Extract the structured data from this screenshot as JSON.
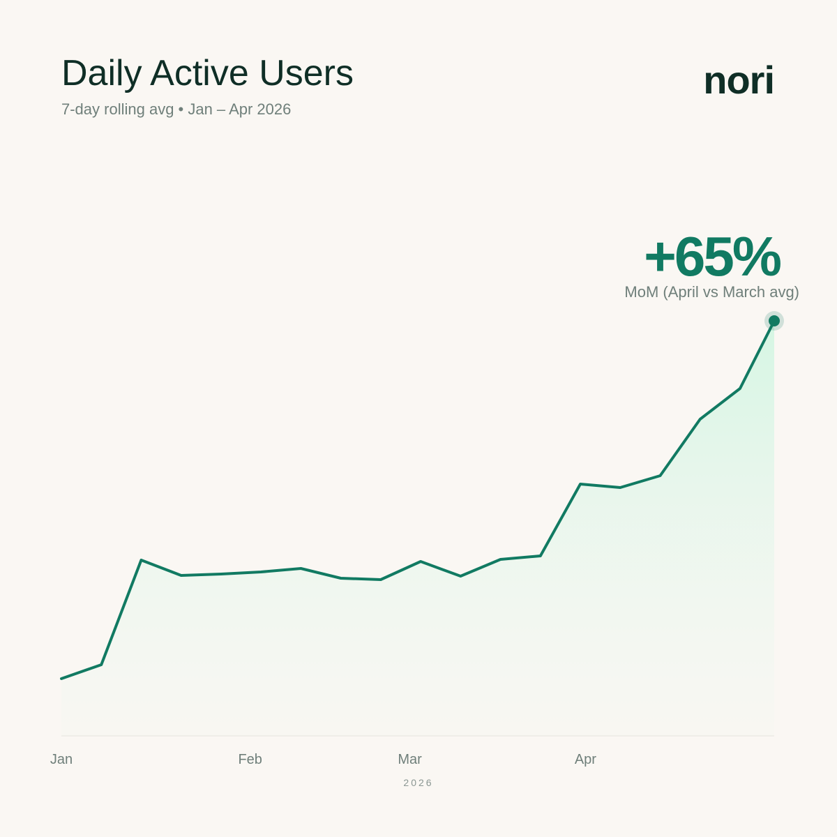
{
  "brand": "nori",
  "chart_data": {
    "type": "line",
    "title": "Daily Active Users",
    "subtitle": "7-day rolling avg • Jan – Apr 2026",
    "x_label": "2026",
    "annotation": {
      "headline": "+65%",
      "caption": "MoM (April vs March avg)"
    },
    "x": [
      0,
      7,
      14,
      21,
      28,
      35,
      42,
      49,
      56,
      63,
      70,
      77,
      84,
      91,
      98,
      105,
      112,
      119,
      125
    ],
    "values": [
      82,
      102,
      252,
      230,
      232,
      235,
      240,
      226,
      224,
      250,
      229,
      253,
      258,
      361,
      356,
      373,
      454,
      498,
      595
    ],
    "color": "#117a62",
    "xlim": [
      0,
      125
    ],
    "xticks": [
      {
        "value": 0,
        "label": "Jan"
      },
      {
        "value": 31,
        "label": "Feb"
      },
      {
        "value": 59,
        "label": "Mar"
      },
      {
        "value": 90,
        "label": "Apr"
      }
    ],
    "ylim": [
      0,
      800
    ]
  }
}
